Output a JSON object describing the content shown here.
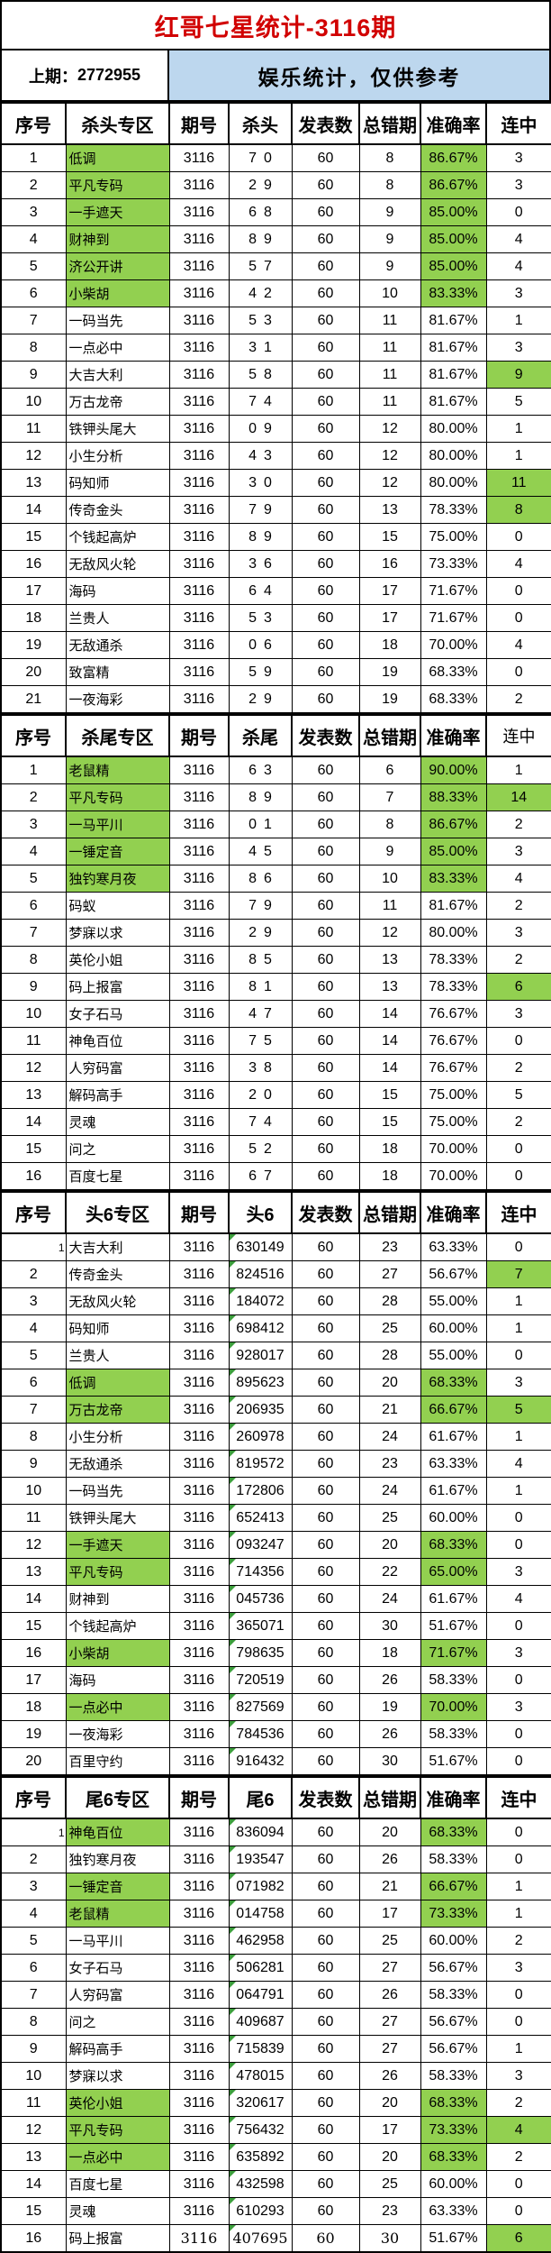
{
  "title": "红哥七星统计-3116期",
  "info": {
    "last_period_prefix": "上期：",
    "last_period_value": "2772955",
    "notice": "娱乐统计，仅供参考"
  },
  "colors": {
    "highlight_green": "#92D050",
    "notice_bg": "#BDD7EE",
    "title_red": "#D10000",
    "corner_flag_green": "#3C9E3C",
    "grid_line": "#000000"
  },
  "row_fields": [
    "no",
    "name",
    "period",
    "value",
    "publish_count",
    "total_error",
    "accuracy",
    "streak",
    "name_green",
    "accuracy_green",
    "streak_green"
  ],
  "sections": [
    {
      "zone": "杀头专区",
      "headers": [
        "序号",
        "杀头专区",
        "期号",
        "杀头",
        "发表数",
        "总错期",
        "准确率",
        "连中"
      ],
      "spread_value": true,
      "corner_flags": false,
      "small_first_no": false,
      "light_streak_header": false,
      "serif_last_row": false,
      "rows": [
        [
          "1",
          "低调",
          "3116",
          "70",
          "60",
          "8",
          "86.67%",
          "3",
          1,
          1,
          0
        ],
        [
          "2",
          "平凡专码",
          "3116",
          "29",
          "60",
          "8",
          "86.67%",
          "3",
          1,
          1,
          0
        ],
        [
          "3",
          "一手遮天",
          "3116",
          "68",
          "60",
          "9",
          "85.00%",
          "0",
          1,
          1,
          0
        ],
        [
          "4",
          "财神到",
          "3116",
          "89",
          "60",
          "9",
          "85.00%",
          "4",
          1,
          1,
          0
        ],
        [
          "5",
          "济公开讲",
          "3116",
          "57",
          "60",
          "9",
          "85.00%",
          "4",
          1,
          1,
          0
        ],
        [
          "6",
          "小柴胡",
          "3116",
          "42",
          "60",
          "10",
          "83.33%",
          "3",
          1,
          1,
          0
        ],
        [
          "7",
          "一码当先",
          "3116",
          "53",
          "60",
          "11",
          "81.67%",
          "1",
          0,
          0,
          0
        ],
        [
          "8",
          "一点必中",
          "3116",
          "31",
          "60",
          "11",
          "81.67%",
          "3",
          0,
          0,
          0
        ],
        [
          "9",
          "大吉大利",
          "3116",
          "58",
          "60",
          "11",
          "81.67%",
          "9",
          0,
          0,
          1
        ],
        [
          "10",
          "万古龙帝",
          "3116",
          "74",
          "60",
          "11",
          "81.67%",
          "5",
          0,
          0,
          0
        ],
        [
          "11",
          "铁钾头尾大",
          "3116",
          "09",
          "60",
          "12",
          "80.00%",
          "1",
          0,
          0,
          0
        ],
        [
          "12",
          "小生分析",
          "3116",
          "43",
          "60",
          "12",
          "80.00%",
          "1",
          0,
          0,
          0
        ],
        [
          "13",
          "码知师",
          "3116",
          "30",
          "60",
          "12",
          "80.00%",
          "11",
          0,
          0,
          1
        ],
        [
          "14",
          "传奇金头",
          "3116",
          "79",
          "60",
          "13",
          "78.33%",
          "8",
          0,
          0,
          1
        ],
        [
          "15",
          "个钱起高炉",
          "3116",
          "89",
          "60",
          "15",
          "75.00%",
          "0",
          0,
          0,
          0
        ],
        [
          "16",
          "无敌风火轮",
          "3116",
          "36",
          "60",
          "16",
          "73.33%",
          "4",
          0,
          0,
          0
        ],
        [
          "17",
          "海码",
          "3116",
          "64",
          "60",
          "17",
          "71.67%",
          "0",
          0,
          0,
          0
        ],
        [
          "18",
          "兰贵人",
          "3116",
          "53",
          "60",
          "17",
          "71.67%",
          "0",
          0,
          0,
          0
        ],
        [
          "19",
          "无敌通杀",
          "3116",
          "06",
          "60",
          "18",
          "70.00%",
          "4",
          0,
          0,
          0
        ],
        [
          "20",
          "致富精",
          "3116",
          "59",
          "60",
          "19",
          "68.33%",
          "0",
          0,
          0,
          0
        ],
        [
          "21",
          "一夜海彩",
          "3116",
          "29",
          "60",
          "19",
          "68.33%",
          "2",
          0,
          0,
          0
        ]
      ]
    },
    {
      "zone": "杀尾专区",
      "headers": [
        "序号",
        "杀尾专区",
        "期号",
        "杀尾",
        "发表数",
        "总错期",
        "准确率",
        "连中"
      ],
      "spread_value": true,
      "corner_flags": false,
      "small_first_no": false,
      "light_streak_header": true,
      "serif_last_row": false,
      "rows": [
        [
          "1",
          "老鼠精",
          "3116",
          "63",
          "60",
          "6",
          "90.00%",
          "1",
          1,
          1,
          0
        ],
        [
          "2",
          "平凡专码",
          "3116",
          "89",
          "60",
          "7",
          "88.33%",
          "14",
          1,
          1,
          1
        ],
        [
          "3",
          "一马平川",
          "3116",
          "01",
          "60",
          "8",
          "86.67%",
          "2",
          1,
          1,
          0
        ],
        [
          "4",
          "一锤定音",
          "3116",
          "45",
          "60",
          "9",
          "85.00%",
          "3",
          1,
          1,
          0
        ],
        [
          "5",
          "独钓寒月夜",
          "3116",
          "86",
          "60",
          "10",
          "83.33%",
          "4",
          1,
          1,
          0
        ],
        [
          "6",
          "码蚁",
          "3116",
          "79",
          "60",
          "11",
          "81.67%",
          "2",
          0,
          0,
          0
        ],
        [
          "7",
          "梦寐以求",
          "3116",
          "29",
          "60",
          "12",
          "80.00%",
          "3",
          0,
          0,
          0
        ],
        [
          "8",
          "英伦小姐",
          "3116",
          "85",
          "60",
          "13",
          "78.33%",
          "2",
          0,
          0,
          0
        ],
        [
          "9",
          "码上报富",
          "3116",
          "81",
          "60",
          "13",
          "78.33%",
          "6",
          0,
          0,
          1
        ],
        [
          "10",
          "女子石马",
          "3116",
          "47",
          "60",
          "14",
          "76.67%",
          "3",
          0,
          0,
          0
        ],
        [
          "11",
          "神龟百位",
          "3116",
          "75",
          "60",
          "14",
          "76.67%",
          "0",
          0,
          0,
          0
        ],
        [
          "12",
          "人穷码富",
          "3116",
          "38",
          "60",
          "14",
          "76.67%",
          "2",
          0,
          0,
          0
        ],
        [
          "13",
          "解码高手",
          "3116",
          "20",
          "60",
          "15",
          "75.00%",
          "5",
          0,
          0,
          0
        ],
        [
          "14",
          "灵魂",
          "3116",
          "74",
          "60",
          "15",
          "75.00%",
          "2",
          0,
          0,
          0
        ],
        [
          "15",
          "问之",
          "3116",
          "52",
          "60",
          "18",
          "70.00%",
          "0",
          0,
          0,
          0
        ],
        [
          "16",
          "百度七星",
          "3116",
          "67",
          "60",
          "18",
          "70.00%",
          "0",
          0,
          0,
          0
        ]
      ]
    },
    {
      "zone": "头6专区",
      "headers": [
        "序号",
        "头6专区",
        "期号",
        "头6",
        "发表数",
        "总错期",
        "准确率",
        "连中"
      ],
      "spread_value": false,
      "corner_flags": true,
      "small_first_no": true,
      "light_streak_header": false,
      "serif_last_row": false,
      "rows": [
        [
          "1",
          "大吉大利",
          "3116",
          "630149",
          "60",
          "23",
          "63.33%",
          "0",
          0,
          0,
          0
        ],
        [
          "2",
          "传奇金头",
          "3116",
          "824516",
          "60",
          "27",
          "56.67%",
          "7",
          0,
          0,
          1
        ],
        [
          "3",
          "无敌风火轮",
          "3116",
          "184072",
          "60",
          "28",
          "55.00%",
          "1",
          0,
          0,
          0
        ],
        [
          "4",
          "码知师",
          "3116",
          "698412",
          "60",
          "25",
          "60.00%",
          "1",
          0,
          0,
          0
        ],
        [
          "5",
          "兰贵人",
          "3116",
          "928017",
          "60",
          "28",
          "55.00%",
          "0",
          0,
          0,
          0
        ],
        [
          "6",
          "低调",
          "3116",
          "895623",
          "60",
          "20",
          "68.33%",
          "3",
          1,
          1,
          0
        ],
        [
          "7",
          "万古龙帝",
          "3116",
          "206935",
          "60",
          "21",
          "66.67%",
          "5",
          1,
          1,
          1
        ],
        [
          "8",
          "小生分析",
          "3116",
          "260978",
          "60",
          "24",
          "61.67%",
          "1",
          0,
          0,
          0
        ],
        [
          "9",
          "无敌通杀",
          "3116",
          "819572",
          "60",
          "23",
          "63.33%",
          "4",
          0,
          0,
          0
        ],
        [
          "10",
          "一码当先",
          "3116",
          "172806",
          "60",
          "24",
          "61.67%",
          "1",
          0,
          0,
          0
        ],
        [
          "11",
          "铁钾头尾大",
          "3116",
          "652413",
          "60",
          "25",
          "60.00%",
          "0",
          0,
          0,
          0
        ],
        [
          "12",
          "一手遮天",
          "3116",
          "093247",
          "60",
          "20",
          "68.33%",
          "0",
          1,
          1,
          0
        ],
        [
          "13",
          "平凡专码",
          "3116",
          "714356",
          "60",
          "22",
          "65.00%",
          "3",
          1,
          1,
          0
        ],
        [
          "14",
          "财神到",
          "3116",
          "045736",
          "60",
          "24",
          "61.67%",
          "4",
          0,
          0,
          0
        ],
        [
          "15",
          "个钱起高炉",
          "3116",
          "365071",
          "60",
          "30",
          "51.67%",
          "0",
          0,
          0,
          0
        ],
        [
          "16",
          "小柴胡",
          "3116",
          "798635",
          "60",
          "18",
          "71.67%",
          "3",
          1,
          1,
          0
        ],
        [
          "17",
          "海码",
          "3116",
          "720519",
          "60",
          "26",
          "58.33%",
          "0",
          0,
          0,
          0
        ],
        [
          "18",
          "一点必中",
          "3116",
          "827569",
          "60",
          "19",
          "70.00%",
          "3",
          1,
          1,
          0
        ],
        [
          "19",
          "一夜海彩",
          "3116",
          "784536",
          "60",
          "26",
          "58.33%",
          "0",
          0,
          0,
          0
        ],
        [
          "20",
          "百里守约",
          "3116",
          "916432",
          "60",
          "30",
          "51.67%",
          "0",
          0,
          0,
          0
        ]
      ]
    },
    {
      "zone": "尾6专区",
      "headers": [
        "序号",
        "尾6专区",
        "期号",
        "尾6",
        "发表数",
        "总错期",
        "准确率",
        "连中"
      ],
      "spread_value": false,
      "corner_flags": true,
      "small_first_no": true,
      "light_streak_header": false,
      "serif_last_row": true,
      "rows": [
        [
          "1",
          "神龟百位",
          "3116",
          "836094",
          "60",
          "20",
          "68.33%",
          "0",
          1,
          1,
          0
        ],
        [
          "2",
          "独钓寒月夜",
          "3116",
          "193547",
          "60",
          "26",
          "58.33%",
          "0",
          0,
          0,
          0
        ],
        [
          "3",
          "一锤定音",
          "3116",
          "071982",
          "60",
          "21",
          "66.67%",
          "1",
          1,
          1,
          0
        ],
        [
          "4",
          "老鼠精",
          "3116",
          "014758",
          "60",
          "17",
          "73.33%",
          "1",
          1,
          1,
          0
        ],
        [
          "5",
          "一马平川",
          "3116",
          "462958",
          "60",
          "25",
          "60.00%",
          "2",
          0,
          0,
          0
        ],
        [
          "6",
          "女子石马",
          "3116",
          "506281",
          "60",
          "27",
          "56.67%",
          "3",
          0,
          0,
          0
        ],
        [
          "7",
          "人穷码富",
          "3116",
          "064791",
          "60",
          "26",
          "58.33%",
          "0",
          0,
          0,
          0
        ],
        [
          "8",
          "问之",
          "3116",
          "409687",
          "60",
          "27",
          "56.67%",
          "0",
          0,
          0,
          0
        ],
        [
          "9",
          "解码高手",
          "3116",
          "715839",
          "60",
          "27",
          "56.67%",
          "1",
          0,
          0,
          0
        ],
        [
          "10",
          "梦寐以求",
          "3116",
          "478015",
          "60",
          "26",
          "58.33%",
          "3",
          0,
          0,
          0
        ],
        [
          "11",
          "英伦小姐",
          "3116",
          "320617",
          "60",
          "20",
          "68.33%",
          "2",
          1,
          1,
          0
        ],
        [
          "12",
          "平凡专码",
          "3116",
          "756432",
          "60",
          "17",
          "73.33%",
          "4",
          1,
          1,
          1
        ],
        [
          "13",
          "一点必中",
          "3116",
          "635892",
          "60",
          "20",
          "68.33%",
          "2",
          1,
          1,
          0
        ],
        [
          "14",
          "百度七星",
          "3116",
          "432598",
          "60",
          "25",
          "60.00%",
          "0",
          0,
          0,
          0
        ],
        [
          "15",
          "灵魂",
          "3116",
          "610293",
          "60",
          "23",
          "63.33%",
          "0",
          0,
          0,
          0
        ],
        [
          "16",
          "码上报富",
          "3116",
          "407695",
          "60",
          "30",
          "51.67%",
          "6",
          0,
          0,
          1
        ]
      ]
    }
  ]
}
